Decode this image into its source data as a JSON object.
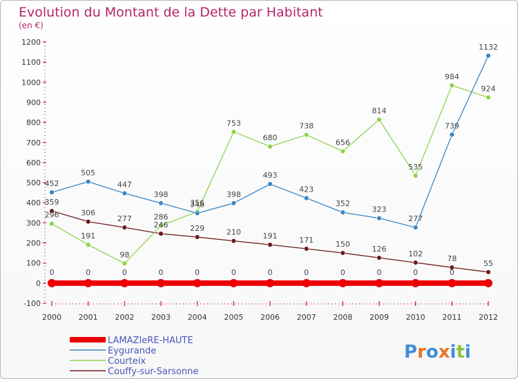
{
  "chart_data": {
    "type": "line",
    "title": "Evolution du Montant de la Dette par Habitant",
    "subtitle": "(en €)",
    "x": [
      "2000",
      "2001",
      "2002",
      "2003",
      "2004",
      "2005",
      "2006",
      "2007",
      "2008",
      "2009",
      "2010",
      "2011",
      "2012"
    ],
    "ylim": [
      -100,
      1200
    ],
    "yticks": [
      -100,
      0,
      100,
      200,
      300,
      400,
      500,
      600,
      700,
      800,
      900,
      1000,
      1100,
      1200
    ],
    "grid": false,
    "legend_position": "bottom-left",
    "series": [
      {
        "name": "LAMAZIeRE-HAUTE",
        "color": "#ee0000",
        "values": [
          0,
          0,
          0,
          0,
          0,
          0,
          0,
          0,
          0,
          0,
          0,
          0,
          0
        ]
      },
      {
        "name": "Eygurande",
        "color": "#3a87c8",
        "values": [
          452,
          505,
          447,
          398,
          348,
          398,
          493,
          423,
          352,
          323,
          277,
          739,
          1132
        ]
      },
      {
        "name": "Courteix",
        "color": "#8ed44d",
        "values": [
          296,
          191,
          98,
          286,
          356,
          753,
          680,
          738,
          656,
          814,
          535,
          984,
          924
        ]
      },
      {
        "name": "Couffy-sur-Sarsonne",
        "color": "#6b1e1e",
        "values": [
          359,
          306,
          277,
          246,
          229,
          210,
          191,
          171,
          150,
          126,
          102,
          78,
          55
        ]
      }
    ],
    "labels": [
      {
        "series": 0,
        "values": [
          "0",
          "0",
          "0",
          "0",
          "0",
          "0",
          "0",
          "0",
          "0",
          "0",
          "0",
          "0",
          ""
        ]
      },
      {
        "series": 1,
        "values": [
          "452",
          "505",
          "447",
          "398",
          "348",
          "398",
          "493",
          "423",
          "352",
          "323",
          "277",
          "739",
          "1132"
        ]
      },
      {
        "series": 2,
        "values": [
          "296",
          "191",
          "98",
          "286",
          "356",
          "753",
          "680",
          "738",
          "656",
          "814",
          "535",
          "984",
          "924"
        ]
      },
      {
        "series": 3,
        "values": [
          "359",
          "306",
          "277",
          "246",
          "229",
          "210",
          "191",
          "171",
          "150",
          "126",
          "102",
          "78",
          "55"
        ]
      }
    ]
  },
  "logo": {
    "text": "Proxiti",
    "letters": [
      "P",
      "r",
      "o",
      "x",
      "i",
      "t",
      "i"
    ],
    "colors": [
      "#3d8ed8",
      "#e8742b",
      "#3d8ed8",
      "#e8742b",
      "#3d8ed8",
      "#8ac43f",
      "#3d8ed8"
    ]
  }
}
